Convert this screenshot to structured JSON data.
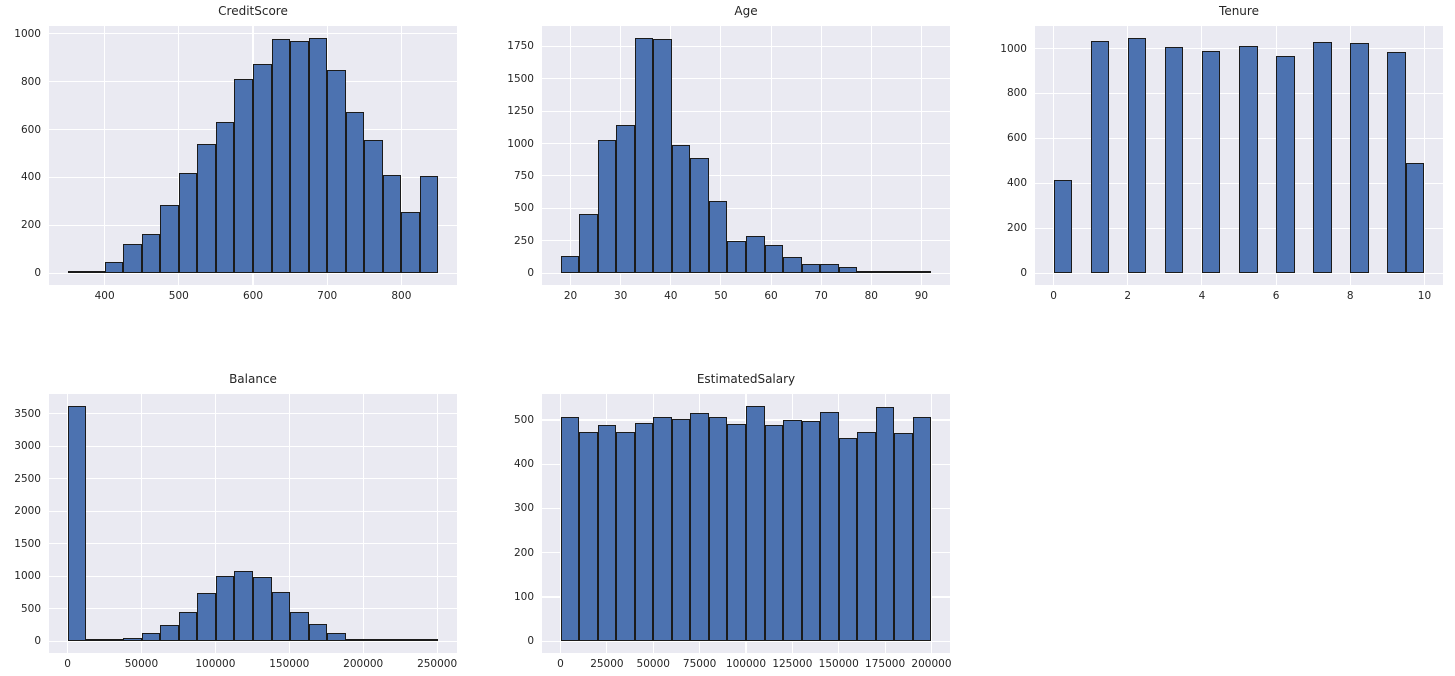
{
  "figure": {
    "background": "#ffffff",
    "axes_background": "#eaeaf2",
    "grid_color": "#ffffff",
    "bar_fill": "#4c72b0",
    "bar_edge": "#1b1b1b",
    "text_color": "#262626"
  },
  "chart_data": [
    {
      "type": "bar",
      "variant": "histogram",
      "title": "CreditScore",
      "bin_edges": [
        350,
        375,
        400,
        425,
        450,
        475,
        500,
        525,
        550,
        575,
        600,
        625,
        650,
        675,
        700,
        725,
        750,
        775,
        800,
        825,
        850
      ],
      "values": [
        10,
        2,
        45,
        120,
        165,
        285,
        420,
        540,
        630,
        810,
        875,
        980,
        970,
        983,
        850,
        675,
        555,
        412,
        255,
        405
      ],
      "xlim": [
        325,
        875
      ],
      "ylim": [
        -49.2,
        1032.2
      ],
      "x_ticks": [
        400,
        500,
        600,
        700,
        800
      ],
      "y_ticks": [
        0,
        200,
        400,
        600,
        800,
        1000
      ],
      "grid": true,
      "legend": false
    },
    {
      "type": "bar",
      "variant": "histogram",
      "title": "Age",
      "bin_edges": [
        18,
        21.7,
        25.4,
        29.1,
        32.8,
        36.5,
        40.2,
        43.9,
        47.6,
        51.3,
        55.0,
        58.7,
        62.4,
        66.1,
        69.8,
        73.5,
        77.2,
        80.9,
        84.6,
        88.3,
        92
      ],
      "values": [
        130,
        455,
        1030,
        1140,
        1815,
        1806,
        985,
        885,
        560,
        250,
        290,
        220,
        125,
        72,
        72,
        45,
        10,
        5,
        2,
        2
      ],
      "xlim": [
        14.3,
        95.7
      ],
      "ylim": [
        -90.8,
        1905.8
      ],
      "x_ticks": [
        20,
        30,
        40,
        50,
        60,
        70,
        80,
        90
      ],
      "y_ticks": [
        0,
        250,
        500,
        750,
        1000,
        1250,
        1500,
        1750
      ],
      "grid": true,
      "legend": false
    },
    {
      "type": "bar",
      "variant": "histogram",
      "title": "Tenure",
      "bin_edges": [
        0,
        0.5,
        1,
        1.5,
        2,
        2.5,
        3,
        3.5,
        4,
        4.5,
        5,
        5.5,
        6,
        6.5,
        7,
        7.5,
        8,
        8.5,
        9,
        9.5,
        10
      ],
      "values": [
        413,
        0,
        1035,
        0,
        1048,
        0,
        1009,
        0,
        989,
        0,
        1012,
        0,
        967,
        0,
        1028,
        0,
        1025,
        0,
        984,
        490
      ],
      "xlim": [
        -0.5,
        10.5
      ],
      "ylim": [
        -52.4,
        1100.4
      ],
      "x_ticks": [
        0,
        2,
        4,
        6,
        8,
        10
      ],
      "y_ticks": [
        0,
        200,
        400,
        600,
        800,
        1000
      ],
      "grid": true,
      "legend": false
    },
    {
      "type": "bar",
      "variant": "histogram",
      "title": "Balance",
      "bin_edges": [
        0,
        12545,
        25090,
        37635,
        50180,
        62725,
        75270,
        87815,
        100360,
        112905,
        125450,
        137995,
        150540,
        163085,
        175630,
        188175,
        200720,
        213265,
        225810,
        238355,
        250900
      ],
      "values": [
        3620,
        2,
        5,
        55,
        125,
        245,
        450,
        745,
        1005,
        1085,
        995,
        755,
        455,
        268,
        120,
        30,
        18,
        3,
        1,
        1
      ],
      "xlim": [
        -12545,
        263445
      ],
      "ylim": [
        -181,
        3801
      ],
      "x_ticks": [
        0,
        50000,
        100000,
        150000,
        200000,
        250000
      ],
      "y_ticks": [
        0,
        500,
        1000,
        1500,
        2000,
        2500,
        3000,
        3500
      ],
      "grid": true,
      "legend": false
    },
    {
      "type": "bar",
      "variant": "histogram",
      "title": "EstimatedSalary",
      "bin_edges": [
        12,
        10011,
        20010,
        30009,
        40008,
        50007,
        60006,
        70005,
        80004,
        90003,
        100002,
        110001,
        120000,
        129999,
        139998,
        149997,
        159996,
        169995,
        179994,
        189993,
        199992
      ],
      "values": [
        506,
        473,
        488,
        472,
        494,
        506,
        503,
        516,
        506,
        490,
        532,
        488,
        500,
        498,
        517,
        459,
        472,
        530,
        470,
        507
      ],
      "xlim": [
        -9987,
        209991
      ],
      "ylim": [
        -26.6,
        558.6
      ],
      "x_ticks": [
        0,
        25000,
        50000,
        75000,
        100000,
        125000,
        150000,
        175000,
        200000
      ],
      "y_ticks": [
        0,
        100,
        200,
        300,
        400,
        500
      ],
      "grid": true,
      "legend": false
    }
  ]
}
